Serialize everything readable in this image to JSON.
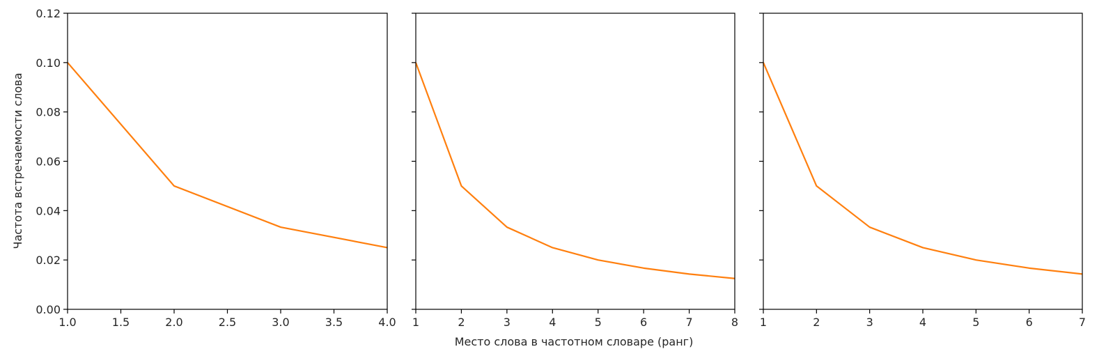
{
  "figure": {
    "shared_ylabel": "Частота встречаемости слова",
    "shared_xlabel": "Место слова в частотном словаре (ранг)"
  },
  "chart_data": [
    {
      "type": "line",
      "x": [
        1,
        2,
        3,
        4
      ],
      "series": [
        {
          "values": [
            0.1,
            0.05,
            0.0333,
            0.025
          ],
          "color": "#ff7f0e"
        }
      ],
      "xlim": [
        1,
        4
      ],
      "ylim": [
        0,
        0.12
      ],
      "xticks": [
        "1.0",
        "1.5",
        "2.0",
        "2.5",
        "3.0",
        "3.5",
        "4.0"
      ],
      "yticks": [
        "0.00",
        "0.02",
        "0.04",
        "0.06",
        "0.08",
        "0.10",
        "0.12"
      ],
      "ylabel": "Частота встречаемости слова",
      "xlabel": "",
      "grid": false
    },
    {
      "type": "line",
      "x": [
        1,
        2,
        3,
        4,
        5,
        6,
        7,
        8
      ],
      "series": [
        {
          "values": [
            0.1,
            0.05,
            0.0333,
            0.025,
            0.02,
            0.0167,
            0.0143,
            0.0125
          ],
          "color": "#ff7f0e"
        }
      ],
      "xlim": [
        1,
        8
      ],
      "ylim": [
        0,
        0.12
      ],
      "xticks": [
        "1",
        "2",
        "3",
        "4",
        "5",
        "6",
        "7",
        "8"
      ],
      "yticks": [],
      "ylabel": "",
      "xlabel": "Место слова в частотном словаре (ранг)",
      "grid": false
    },
    {
      "type": "line",
      "x": [
        1,
        2,
        3,
        4,
        5,
        6,
        7
      ],
      "series": [
        {
          "values": [
            0.1,
            0.05,
            0.0333,
            0.025,
            0.02,
            0.0167,
            0.0143
          ],
          "color": "#ff7f0e"
        }
      ],
      "xlim": [
        1,
        7
      ],
      "ylim": [
        0,
        0.12
      ],
      "xticks": [
        "1",
        "2",
        "3",
        "4",
        "5",
        "6",
        "7"
      ],
      "yticks": [],
      "ylabel": "",
      "xlabel": "",
      "grid": false
    }
  ]
}
